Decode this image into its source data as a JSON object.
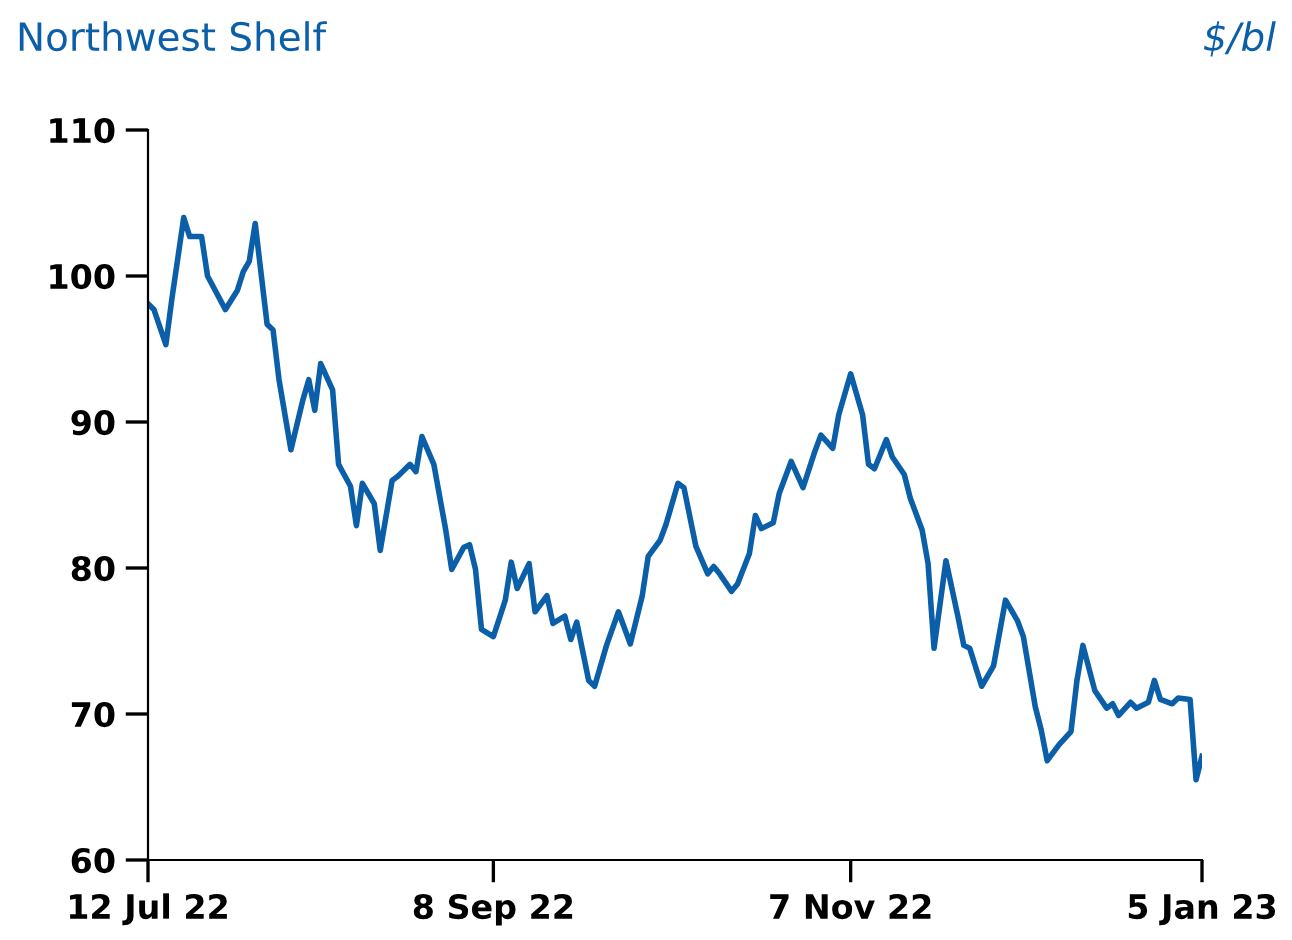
{
  "chart_data": {
    "type": "line",
    "title": "Northwest Shelf",
    "ylabel": "$/bl",
    "x": [
      "2022-07-12",
      "2022-07-13",
      "2022-07-15",
      "2022-07-16",
      "2022-07-18",
      "2022-07-19",
      "2022-07-21",
      "2022-07-22",
      "2022-07-25",
      "2022-07-27",
      "2022-07-28",
      "2022-07-29",
      "2022-07-30",
      "2022-08-01",
      "2022-08-02",
      "2022-08-03",
      "2022-08-05",
      "2022-08-07",
      "2022-08-08",
      "2022-08-09",
      "2022-08-10",
      "2022-08-12",
      "2022-08-13",
      "2022-08-15",
      "2022-08-16",
      "2022-08-17",
      "2022-08-19",
      "2022-08-20",
      "2022-08-22",
      "2022-08-23",
      "2022-08-25",
      "2022-08-26",
      "2022-08-27",
      "2022-08-29",
      "2022-08-31",
      "2022-09-01",
      "2022-09-03",
      "2022-09-04",
      "2022-09-05",
      "2022-09-06",
      "2022-09-08",
      "2022-09-10",
      "2022-09-11",
      "2022-09-12",
      "2022-09-14",
      "2022-09-15",
      "2022-09-17",
      "2022-09-18",
      "2022-09-20",
      "2022-09-21",
      "2022-09-22",
      "2022-09-24",
      "2022-09-25",
      "2022-09-27",
      "2022-09-29",
      "2022-10-01",
      "2022-10-03",
      "2022-10-04",
      "2022-10-06",
      "2022-10-07",
      "2022-10-09",
      "2022-10-10",
      "2022-10-12",
      "2022-10-14",
      "2022-10-15",
      "2022-10-16",
      "2022-10-18",
      "2022-10-19",
      "2022-10-21",
      "2022-10-22",
      "2022-10-23",
      "2022-10-25",
      "2022-10-26",
      "2022-10-28",
      "2022-10-30",
      "2022-11-01",
      "2022-11-02",
      "2022-11-04",
      "2022-11-05",
      "2022-11-07",
      "2022-11-09",
      "2022-11-10",
      "2022-11-11",
      "2022-11-13",
      "2022-11-14",
      "2022-11-16",
      "2022-11-17",
      "2022-11-19",
      "2022-11-20",
      "2022-11-21",
      "2022-11-23",
      "2022-11-25",
      "2022-11-26",
      "2022-11-27",
      "2022-11-29",
      "2022-12-01",
      "2022-12-03",
      "2022-12-05",
      "2022-12-06",
      "2022-12-08",
      "2022-12-09",
      "2022-12-10",
      "2022-12-12",
      "2022-12-14",
      "2022-12-15",
      "2022-12-16",
      "2022-12-18",
      "2022-12-20",
      "2022-12-21",
      "2022-12-22",
      "2022-12-24",
      "2022-12-25",
      "2022-12-27",
      "2022-12-28",
      "2022-12-29",
      "2022-12-31",
      "2023-01-01",
      "2023-01-03",
      "2023-01-04",
      "2023-01-05"
    ],
    "series": [
      {
        "color": "#0b5ea8",
        "values": [
          98.1,
          97.7,
          95.3,
          98.4,
          104.0,
          102.7,
          102.7,
          100.0,
          97.7,
          99.0,
          100.3,
          101.0,
          103.6,
          96.7,
          96.3,
          92.9,
          88.1,
          91.5,
          92.9,
          90.8,
          94.0,
          92.2,
          87.1,
          85.6,
          82.9,
          85.8,
          84.4,
          81.2,
          86.0,
          86.3,
          87.1,
          86.6,
          89.0,
          87.1,
          82.6,
          79.9,
          81.4,
          81.6,
          79.9,
          75.8,
          75.3,
          77.8,
          80.4,
          78.6,
          80.3,
          77.0,
          78.1,
          76.2,
          76.7,
          75.1,
          76.3,
          72.3,
          71.9,
          74.7,
          77.0,
          74.8,
          78.1,
          80.8,
          81.9,
          83.0,
          85.8,
          85.5,
          81.5,
          79.6,
          80.1,
          79.6,
          78.4,
          78.9,
          81.0,
          83.6,
          82.7,
          83.1,
          85.1,
          87.3,
          85.5,
          88.0,
          89.1,
          88.2,
          90.5,
          93.3,
          90.5,
          87.1,
          86.8,
          88.8,
          87.6,
          86.4,
          84.8,
          82.6,
          80.3,
          74.5,
          80.5,
          76.7,
          74.7,
          74.5,
          71.9,
          73.3,
          77.8,
          76.4,
          75.3,
          70.5,
          68.9,
          66.8,
          67.9,
          68.8,
          72.3,
          74.7,
          71.6,
          70.4,
          70.7,
          69.9,
          70.8,
          70.4,
          70.8,
          72.3,
          71.0,
          70.7,
          71.1,
          71.0,
          65.5,
          67.1
        ]
      }
    ],
    "xlim": [
      "2022-07-12",
      "2023-01-05"
    ],
    "xticks": [
      {
        "value": "2022-07-12",
        "label": "12 Jul 22"
      },
      {
        "value": "2022-09-08",
        "label": "8 Sep 22"
      },
      {
        "value": "2022-11-07",
        "label": "7 Nov 22"
      },
      {
        "value": "2023-01-05",
        "label": "5 Jan 23"
      }
    ],
    "ylim": [
      60,
      110
    ],
    "yticks": [
      60,
      70,
      80,
      90,
      100,
      110
    ],
    "grid": false,
    "legend": false
  }
}
